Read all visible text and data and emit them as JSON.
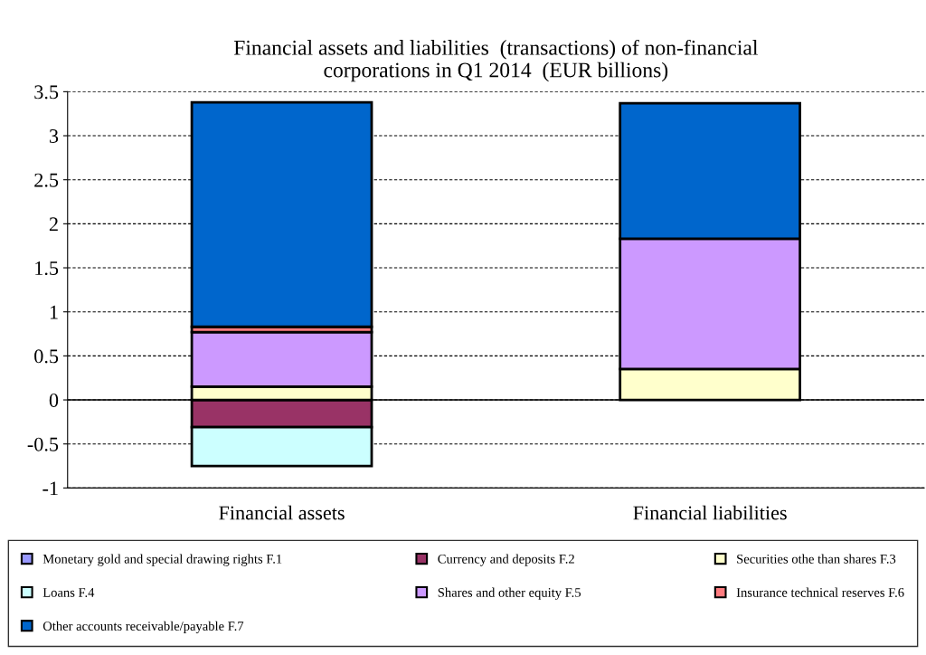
{
  "chart_data": {
    "type": "bar",
    "stacked": true,
    "title": "Financial assets and liabilities  (transactions) of non-financial\ncorporations in Q1 2014  (EUR billions)",
    "categories": [
      "Financial assets",
      "Financial liabilities"
    ],
    "series": [
      {
        "name": "Monetary gold and special drawing rights F.1",
        "color": "#9999ff",
        "values": [
          0,
          0
        ]
      },
      {
        "name": "Currency and deposits F.2",
        "color": "#993366",
        "values": [
          -0.31,
          0
        ]
      },
      {
        "name": "Securities othe than shares F.3",
        "color": "#ffffcc",
        "values": [
          0.15,
          0.35
        ]
      },
      {
        "name": "Loans F.4",
        "color": "#ccffff",
        "values": [
          -0.44,
          0
        ]
      },
      {
        "name": "Shares and other equity F.5",
        "color": "#cc99ff",
        "values": [
          0.62,
          1.48
        ]
      },
      {
        "name": "Insurance technical reserves F.6",
        "color": "#ff7c80",
        "values": [
          0.06,
          0
        ]
      },
      {
        "name": "Other accounts receivable/payable F.7",
        "color": "#0066cc",
        "values": [
          2.55,
          1.54
        ]
      }
    ],
    "ylim": [
      -1,
      3.5
    ],
    "yticks": [
      -1,
      -0.5,
      0,
      0.5,
      1,
      1.5,
      2,
      2.5,
      3,
      3.5
    ],
    "grid": "y",
    "legend": "bottom"
  }
}
